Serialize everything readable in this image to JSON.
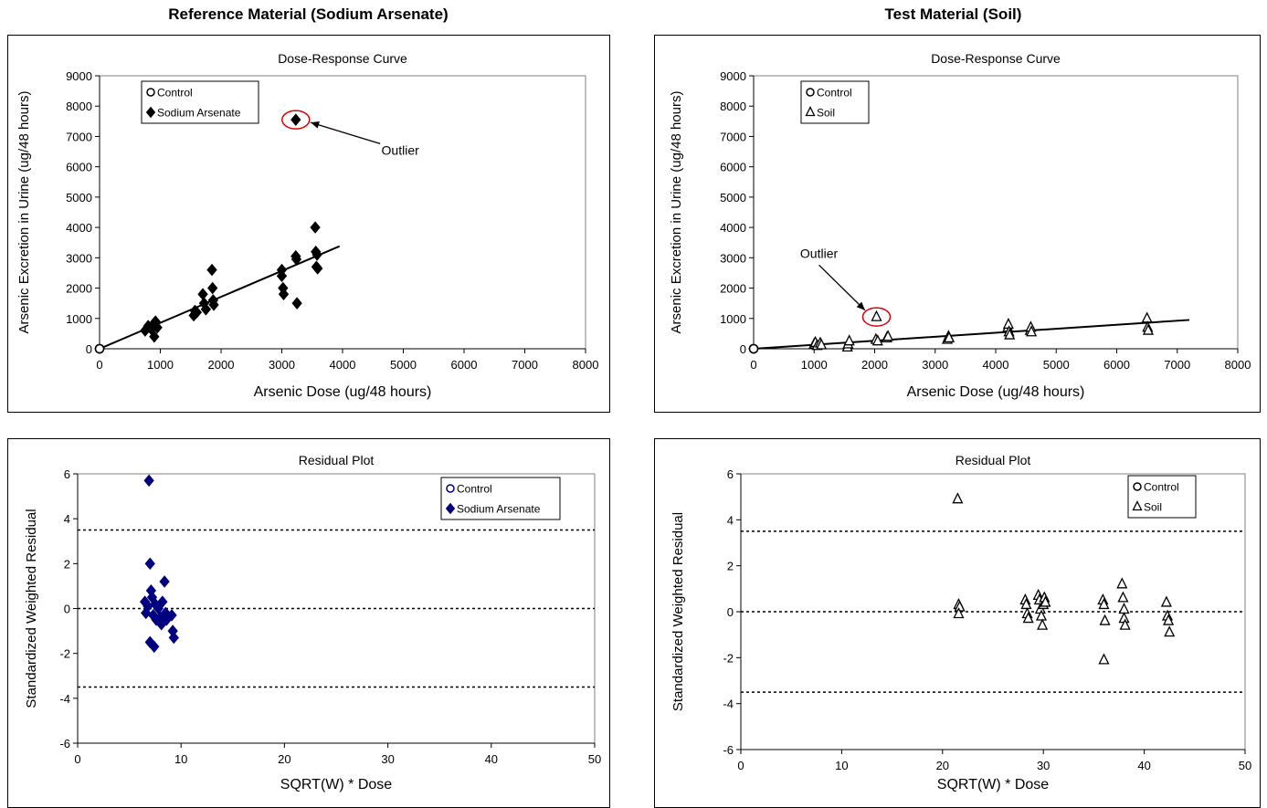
{
  "columns": [
    {
      "title": "Reference Material (Sodium Arsenate)"
    },
    {
      "title": "Test Material (Soil)"
    }
  ],
  "chart_data": [
    {
      "type": "scatter",
      "title": "Dose-Response Curve",
      "xlabel": "Arsenic Dose (ug/48 hours)",
      "ylabel": "Arsenic Excretion in Urine (ug/48 hours)",
      "xlim": [
        0,
        8000
      ],
      "ylim": [
        0,
        9000
      ],
      "xticks": [
        "0",
        "1000",
        "2000",
        "3000",
        "4000",
        "5000",
        "6000",
        "7000",
        "8000"
      ],
      "yticks": [
        "0",
        "1000",
        "2000",
        "3000",
        "4000",
        "5000",
        "6000",
        "7000",
        "8000",
        "9000"
      ],
      "grid": false,
      "legend_position": "top-left",
      "series": [
        {
          "name": "Control",
          "marker": "circle",
          "color": "#000000",
          "points": [
            [
              0,
              0
            ],
            [
              0,
              0
            ],
            [
              0,
              0
            ],
            [
              0,
              0
            ],
            [
              0,
              0
            ],
            [
              0,
              0
            ]
          ]
        },
        {
          "name": "Sodium Arsenate",
          "marker": "diamond",
          "color": "#000000",
          "points": [
            [
              750,
              600
            ],
            [
              800,
              750
            ],
            [
              850,
              650
            ],
            [
              880,
              800
            ],
            [
              900,
              400
            ],
            [
              920,
              900
            ],
            [
              950,
              700
            ],
            [
              1550,
              1100
            ],
            [
              1570,
              1250
            ],
            [
              1600,
              1200
            ],
            [
              1700,
              1800
            ],
            [
              1720,
              1500
            ],
            [
              1750,
              1300
            ],
            [
              1850,
              2600
            ],
            [
              1860,
              2000
            ],
            [
              1870,
              1600
            ],
            [
              1880,
              1450
            ],
            [
              3000,
              2600
            ],
            [
              3000,
              2400
            ],
            [
              3020,
              2000
            ],
            [
              3030,
              1800
            ],
            [
              3230,
              3050
            ],
            [
              3240,
              2950
            ],
            [
              3250,
              1500
            ],
            [
              3550,
              4000
            ],
            [
              3560,
              3200
            ],
            [
              3570,
              2700
            ],
            [
              3580,
              3100
            ],
            [
              3590,
              2650
            ],
            [
              3230,
              7550
            ]
          ]
        }
      ],
      "fit_line": {
        "from": [
          0,
          0
        ],
        "to": [
          3950,
          3380
        ]
      },
      "annotation": {
        "text": "Outlier",
        "target": [
          3230,
          7550
        ],
        "label_at": [
          4950,
          6400
        ]
      }
    },
    {
      "type": "scatter",
      "title": "Dose-Response Curve",
      "xlabel": "Arsenic Dose (ug/48 hours)",
      "ylabel": "Arsenic Excretion in Urine (ug/48 hours)",
      "xlim": [
        0,
        8000
      ],
      "ylim": [
        0,
        9000
      ],
      "xticks": [
        "0",
        "1000",
        "2000",
        "3000",
        "4000",
        "5000",
        "6000",
        "7000",
        "8000"
      ],
      "yticks": [
        "0",
        "1000",
        "2000",
        "3000",
        "4000",
        "5000",
        "6000",
        "7000",
        "8000",
        "9000"
      ],
      "grid": false,
      "legend_position": "top-left",
      "series": [
        {
          "name": "Control",
          "marker": "circle",
          "color": "#000000",
          "points": [
            [
              0,
              0
            ],
            [
              0,
              0
            ],
            [
              0,
              0
            ],
            [
              0,
              0
            ],
            [
              0,
              0
            ]
          ]
        },
        {
          "name": "Soil",
          "marker": "triangle",
          "color": "#000000",
          "points": [
            [
              1000,
              150
            ],
            [
              1020,
              200
            ],
            [
              1050,
              100
            ],
            [
              1100,
              180
            ],
            [
              1120,
              120
            ],
            [
              1550,
              50
            ],
            [
              1560,
              150
            ],
            [
              1580,
              250
            ],
            [
              2020,
              300
            ],
            [
              2050,
              250
            ],
            [
              2200,
              350
            ],
            [
              2220,
              400
            ],
            [
              3200,
              300
            ],
            [
              3220,
              400
            ],
            [
              3230,
              350
            ],
            [
              4200,
              700
            ],
            [
              4210,
              800
            ],
            [
              4220,
              550
            ],
            [
              4230,
              450
            ],
            [
              4570,
              600
            ],
            [
              4580,
              700
            ],
            [
              4590,
              550
            ],
            [
              6500,
              1000
            ],
            [
              6510,
              700
            ],
            [
              6520,
              600
            ],
            [
              2030,
              1050
            ]
          ]
        }
      ],
      "fit_line": {
        "from": [
          0,
          0
        ],
        "to": [
          7200,
          950
        ]
      },
      "annotation": {
        "text": "Outlier",
        "target": [
          2030,
          1050
        ],
        "label_at": [
          1080,
          3000
        ]
      }
    },
    {
      "type": "scatter",
      "title": "Residual Plot",
      "xlabel": "SQRT(W) * Dose",
      "ylabel": "Standardized Weighted Residual",
      "xlim": [
        0,
        50
      ],
      "ylim": [
        -6,
        6
      ],
      "xticks": [
        "0",
        "10",
        "20",
        "30",
        "40",
        "50"
      ],
      "yticks": [
        "-6",
        "-4",
        "-2",
        "0",
        "2",
        "4",
        "6"
      ],
      "grid": false,
      "legend_position": "top-right",
      "reference_lines": [
        3.5,
        0,
        -3.5
      ],
      "series": [
        {
          "name": "Control",
          "marker": "circle",
          "color": "#000080",
          "points": []
        },
        {
          "name": "Sodium Arsenate",
          "marker": "diamond",
          "color": "#000080",
          "points": [
            [
              6.5,
              0.3
            ],
            [
              6.6,
              -0.2
            ],
            [
              6.8,
              0.1
            ],
            [
              6.9,
              5.7
            ],
            [
              7.0,
              2.0
            ],
            [
              7.0,
              -1.5
            ],
            [
              7.1,
              0.8
            ],
            [
              7.2,
              0.5
            ],
            [
              7.3,
              -0.3
            ],
            [
              7.4,
              -1.7
            ],
            [
              7.5,
              0.2
            ],
            [
              7.6,
              -0.5
            ],
            [
              7.8,
              0.0
            ],
            [
              8.0,
              -0.4
            ],
            [
              8.1,
              -0.7
            ],
            [
              8.2,
              0.3
            ],
            [
              8.4,
              1.2
            ],
            [
              8.5,
              -0.2
            ],
            [
              8.6,
              -0.5
            ],
            [
              9.1,
              -0.3
            ],
            [
              9.2,
              -1.0
            ],
            [
              9.3,
              -1.3
            ]
          ]
        }
      ]
    },
    {
      "type": "scatter",
      "title": "Residual Plot",
      "xlabel": "SQRT(W) * Dose",
      "ylabel": "Standardized Weighted Residual",
      "xlim": [
        0,
        50
      ],
      "ylim": [
        -6,
        6
      ],
      "xticks": [
        "0",
        "10",
        "20",
        "30",
        "40",
        "50"
      ],
      "yticks": [
        "-6",
        "-4",
        "-2",
        "0",
        "2",
        "4",
        "6"
      ],
      "grid": false,
      "legend_position": "top-right",
      "reference_lines": [
        3.5,
        0,
        -3.5
      ],
      "series": [
        {
          "name": "Control",
          "marker": "circle",
          "color": "#000000",
          "points": []
        },
        {
          "name": "Soil",
          "marker": "triangle",
          "color": "#000000",
          "points": [
            [
              21.5,
              4.9
            ],
            [
              21.6,
              0.3
            ],
            [
              21.7,
              0.2
            ],
            [
              21.6,
              -0.1
            ],
            [
              28.2,
              0.5
            ],
            [
              28.3,
              0.3
            ],
            [
              28.4,
              -0.1
            ],
            [
              28.5,
              -0.3
            ],
            [
              29.5,
              0.7
            ],
            [
              29.6,
              0.5
            ],
            [
              29.7,
              0.1
            ],
            [
              29.8,
              -0.2
            ],
            [
              29.9,
              -0.6
            ],
            [
              30.0,
              0.3
            ],
            [
              30.1,
              0.6
            ],
            [
              30.2,
              0.4
            ],
            [
              35.9,
              0.5
            ],
            [
              36.0,
              0.3
            ],
            [
              36.1,
              -0.4
            ],
            [
              36.0,
              -2.1
            ],
            [
              37.8,
              1.2
            ],
            [
              37.9,
              0.6
            ],
            [
              38.0,
              0.1
            ],
            [
              38.0,
              -0.3
            ],
            [
              38.1,
              -0.6
            ],
            [
              42.2,
              0.4
            ],
            [
              42.3,
              -0.2
            ],
            [
              42.4,
              -0.4
            ],
            [
              42.5,
              -0.9
            ]
          ]
        }
      ]
    }
  ]
}
